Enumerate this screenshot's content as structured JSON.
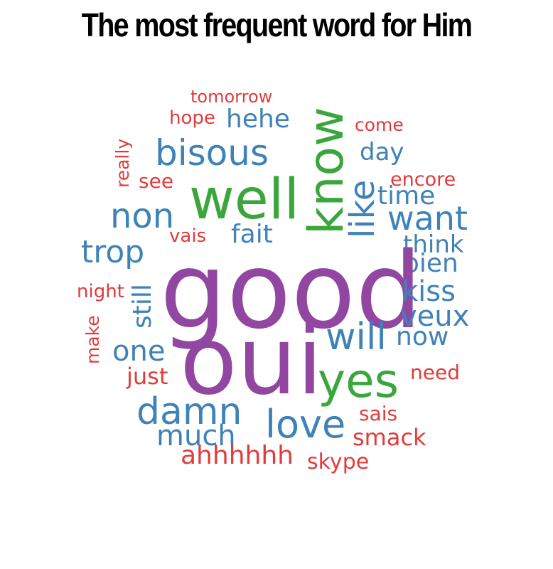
{
  "title": "The most frequent word for Him",
  "colors": {
    "red": "#e03c3c",
    "blue": "#3f82b8",
    "green": "#3aa63c",
    "purple": "#9146a1"
  },
  "words": [
    {
      "text": "tomorrow",
      "color": "red"
    },
    {
      "text": "hope",
      "color": "red"
    },
    {
      "text": "hehe",
      "color": "blue"
    },
    {
      "text": "know",
      "color": "green"
    },
    {
      "text": "come",
      "color": "red"
    },
    {
      "text": "really",
      "color": "red"
    },
    {
      "text": "bisous",
      "color": "blue"
    },
    {
      "text": "day",
      "color": "blue"
    },
    {
      "text": "see",
      "color": "red"
    },
    {
      "text": "encore",
      "color": "red"
    },
    {
      "text": "like",
      "color": "blue"
    },
    {
      "text": "time",
      "color": "blue"
    },
    {
      "text": "well",
      "color": "green"
    },
    {
      "text": "non",
      "color": "blue"
    },
    {
      "text": "want",
      "color": "blue"
    },
    {
      "text": "vais",
      "color": "red"
    },
    {
      "text": "fait",
      "color": "blue"
    },
    {
      "text": "trop",
      "color": "blue"
    },
    {
      "text": "think",
      "color": "blue"
    },
    {
      "text": "bien",
      "color": "blue"
    },
    {
      "text": "good",
      "color": "purple"
    },
    {
      "text": "night",
      "color": "red"
    },
    {
      "text": "still",
      "color": "blue"
    },
    {
      "text": "kiss",
      "color": "blue"
    },
    {
      "text": "veux",
      "color": "blue"
    },
    {
      "text": "make",
      "color": "red"
    },
    {
      "text": "will",
      "color": "blue"
    },
    {
      "text": "now",
      "color": "blue"
    },
    {
      "text": "one",
      "color": "blue"
    },
    {
      "text": "oui",
      "color": "purple"
    },
    {
      "text": "just",
      "color": "red"
    },
    {
      "text": "need",
      "color": "red"
    },
    {
      "text": "yes",
      "color": "green"
    },
    {
      "text": "damn",
      "color": "blue"
    },
    {
      "text": "sais",
      "color": "red"
    },
    {
      "text": "love",
      "color": "blue"
    },
    {
      "text": "much",
      "color": "blue"
    },
    {
      "text": "smack",
      "color": "red"
    },
    {
      "text": "ahhhhhh",
      "color": "red"
    },
    {
      "text": "skype",
      "color": "red"
    }
  ]
}
